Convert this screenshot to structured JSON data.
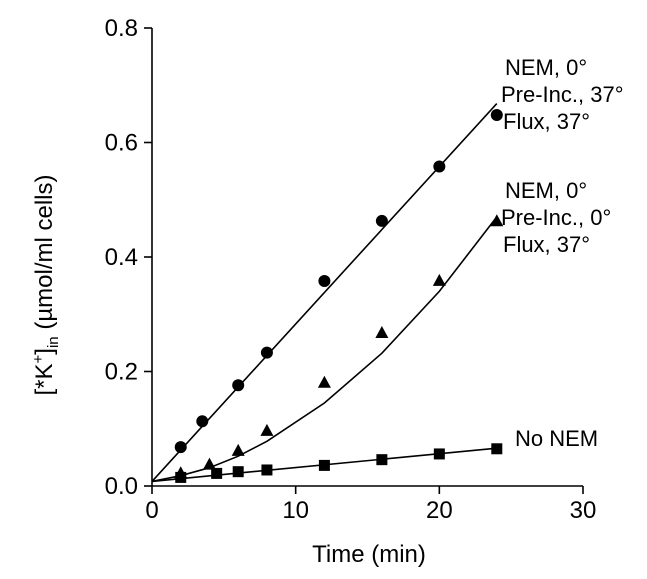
{
  "chart_data": {
    "type": "scatter",
    "xlabel": "Time (min)",
    "ylabel": {
      "open": "[*K",
      "sup": "+",
      "close": "]",
      "sub": "in",
      "rest": " (µmol/ml cells)"
    },
    "xlim": [
      0,
      30
    ],
    "ylim": [
      0,
      0.8
    ],
    "xticks": [
      0,
      10,
      20,
      30
    ],
    "yticks": [
      0.0,
      0.2,
      0.4,
      0.6,
      0.8
    ],
    "xtick_labels": [
      "0",
      "10",
      "20",
      "30"
    ],
    "ytick_labels": [
      "0.0",
      "0.2",
      "0.4",
      "0.6",
      "0.8"
    ],
    "grid": false,
    "series": [
      {
        "marker": "circle",
        "label_lines": [
          "NEM, 0°",
          "Pre-Inc., 37°",
          "Flux, 37°"
        ],
        "x": [
          2,
          3.5,
          6,
          8,
          12,
          16,
          20,
          24
        ],
        "y": [
          0.068,
          0.113,
          0.176,
          0.233,
          0.358,
          0.463,
          0.558,
          0.648
        ],
        "fit_x": [
          0,
          24
        ],
        "fit_y": [
          0.008,
          0.668
        ]
      },
      {
        "marker": "triangle",
        "label_lines": [
          "NEM, 0°",
          "Pre-Inc., 0°",
          "Flux, 37°"
        ],
        "x": [
          2,
          4,
          6,
          8,
          12,
          16,
          20,
          24
        ],
        "y": [
          0.022,
          0.037,
          0.061,
          0.096,
          0.18,
          0.267,
          0.358,
          0.462
        ],
        "fit_x": [
          0,
          2,
          4,
          6,
          8,
          12,
          16,
          20,
          24
        ],
        "fit_y": [
          0.008,
          0.018,
          0.032,
          0.052,
          0.078,
          0.145,
          0.232,
          0.34,
          0.47
        ]
      },
      {
        "marker": "square",
        "label_lines": [
          "No NEM"
        ],
        "x": [
          2,
          4.5,
          6,
          8,
          12,
          16,
          20,
          24
        ],
        "y": [
          0.015,
          0.022,
          0.025,
          0.028,
          0.036,
          0.046,
          0.056,
          0.065
        ],
        "fit_x": [
          0,
          24
        ],
        "fit_y": [
          0.008,
          0.066
        ]
      }
    ]
  }
}
